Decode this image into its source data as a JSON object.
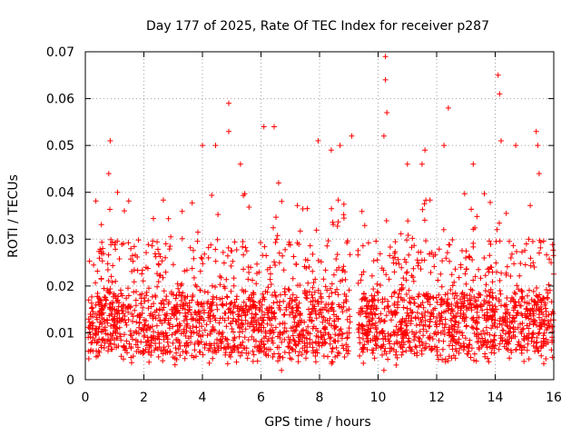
{
  "chart_data": {
    "type": "scatter",
    "title": "Day 177 of 2025, Rate Of TEC Index for receiver p287",
    "xlabel": "GPS time / hours",
    "ylabel": "ROTI / TECUs",
    "xlim": [
      0,
      16
    ],
    "ylim": [
      0,
      0.07
    ],
    "x_ticks": [
      0,
      2,
      4,
      6,
      8,
      10,
      12,
      14,
      16
    ],
    "x_tick_labels": [
      "0",
      "2",
      "4",
      "6",
      "8",
      "10",
      "12",
      "14",
      "16"
    ],
    "y_ticks": [
      0,
      0.01,
      0.02,
      0.03,
      0.04,
      0.05,
      0.06,
      0.07
    ],
    "y_tick_labels": [
      "0",
      "0.01",
      "0.02",
      "0.03",
      "0.04",
      "0.05",
      "0.06",
      "0.07"
    ],
    "grid": true,
    "marker": "+",
    "color": "#ff0000",
    "data_gap_hours": [
      9.05,
      9.3
    ],
    "series": [
      {
        "name": "ROTI",
        "typical_range": [
          0.003,
          0.03
        ],
        "notable_points": [
          {
            "x": 0.85,
            "y": 0.051
          },
          {
            "x": 0.8,
            "y": 0.044
          },
          {
            "x": 1.1,
            "y": 0.04
          },
          {
            "x": 4.0,
            "y": 0.05
          },
          {
            "x": 4.45,
            "y": 0.05
          },
          {
            "x": 4.9,
            "y": 0.059
          },
          {
            "x": 4.9,
            "y": 0.053
          },
          {
            "x": 5.3,
            "y": 0.046
          },
          {
            "x": 6.1,
            "y": 0.054
          },
          {
            "x": 6.45,
            "y": 0.054
          },
          {
            "x": 6.6,
            "y": 0.042
          },
          {
            "x": 7.95,
            "y": 0.051
          },
          {
            "x": 8.4,
            "y": 0.049
          },
          {
            "x": 8.7,
            "y": 0.05
          },
          {
            "x": 9.1,
            "y": 0.052
          },
          {
            "x": 10.25,
            "y": 0.069
          },
          {
            "x": 10.25,
            "y": 0.064
          },
          {
            "x": 10.3,
            "y": 0.057
          },
          {
            "x": 10.2,
            "y": 0.052
          },
          {
            "x": 11.0,
            "y": 0.046
          },
          {
            "x": 11.5,
            "y": 0.046
          },
          {
            "x": 11.6,
            "y": 0.049
          },
          {
            "x": 12.25,
            "y": 0.05
          },
          {
            "x": 12.4,
            "y": 0.058
          },
          {
            "x": 13.25,
            "y": 0.046
          },
          {
            "x": 14.1,
            "y": 0.065
          },
          {
            "x": 14.15,
            "y": 0.061
          },
          {
            "x": 14.2,
            "y": 0.051
          },
          {
            "x": 14.7,
            "y": 0.05
          },
          {
            "x": 15.4,
            "y": 0.053
          },
          {
            "x": 15.45,
            "y": 0.05
          },
          {
            "x": 15.5,
            "y": 0.044
          },
          {
            "x": 10.2,
            "y": 0.002
          },
          {
            "x": 6.7,
            "y": 0.002
          }
        ]
      }
    ]
  }
}
